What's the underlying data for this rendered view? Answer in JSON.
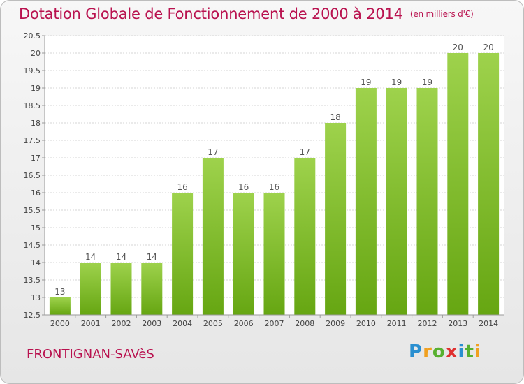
{
  "header": {
    "title": "Dotation Globale de Fonctionnement de 2000 à 2014",
    "unit": "(en milliers d'€)"
  },
  "footer": {
    "commune": "FRONTIGNAN-SAVèS",
    "logo_chars": [
      "P",
      "r",
      "o",
      "x",
      "i",
      "t",
      "i"
    ],
    "logo_colors": [
      "#2a8fd0",
      "#f0a020",
      "#58b030",
      "#e03030",
      "#2a8fd0",
      "#58b030",
      "#f0a020"
    ]
  },
  "chart_data": {
    "type": "bar",
    "categories": [
      "2000",
      "2001",
      "2002",
      "2003",
      "2004",
      "2005",
      "2006",
      "2007",
      "2008",
      "2009",
      "2010",
      "2011",
      "2012",
      "2013",
      "2014"
    ],
    "values": [
      13,
      14,
      14,
      14,
      16,
      17,
      16,
      16,
      17,
      18,
      19,
      19,
      19,
      20,
      20
    ],
    "data_labels": [
      "13",
      "14",
      "14",
      "14",
      "16",
      "17",
      "16",
      "16",
      "17",
      "18",
      "19",
      "19",
      "19",
      "20",
      "20"
    ],
    "ylim": [
      12.5,
      20.5
    ],
    "yticks": [
      12.5,
      13,
      13.5,
      14,
      14.5,
      15,
      15.5,
      16,
      16.5,
      17,
      17.5,
      18,
      18.5,
      19,
      19.5,
      20,
      20.5
    ],
    "ytick_labels": [
      "12.5",
      "13",
      "13.5",
      "14",
      "14.5",
      "15",
      "15.5",
      "16",
      "16.5",
      "17",
      "17.5",
      "18",
      "18.5",
      "19",
      "19.5",
      "20",
      "20.5"
    ],
    "grid": true,
    "colors": {
      "bar_top": "#9ed24c",
      "bar_bottom": "#66a612",
      "grid": "#d4d4d4",
      "axis": "#9a9a9a"
    }
  }
}
